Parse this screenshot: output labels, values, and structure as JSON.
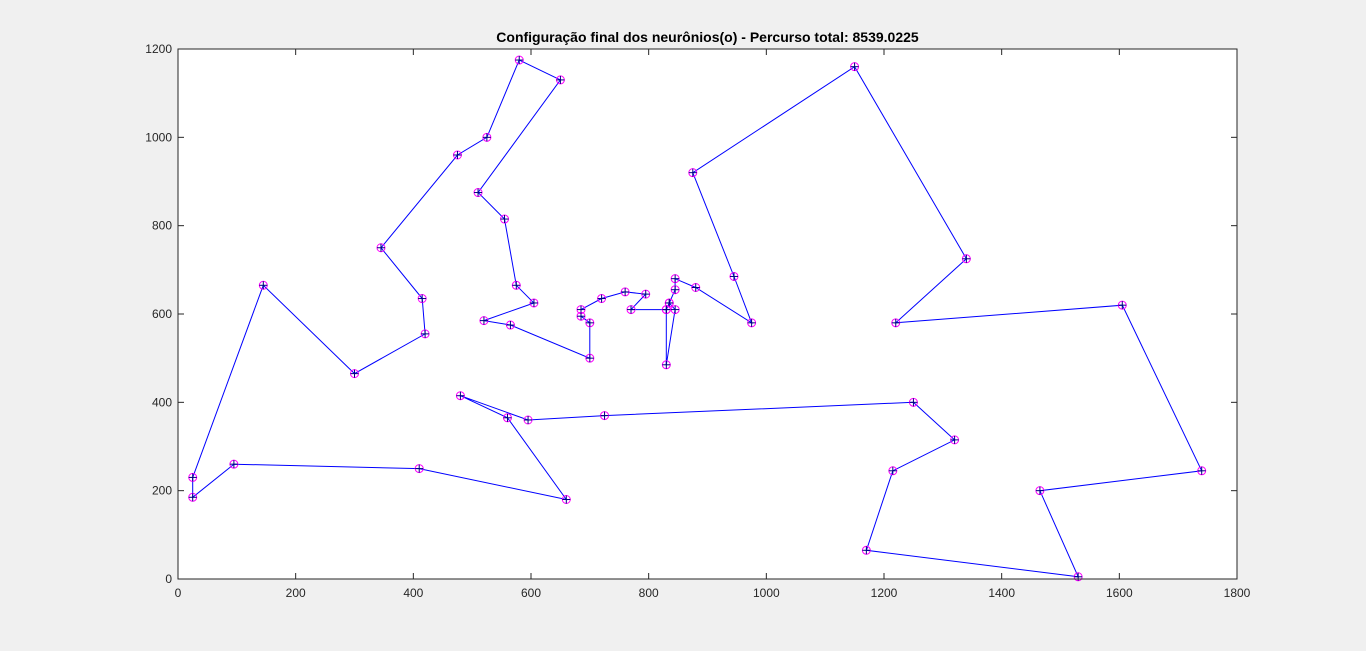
{
  "chart_data": {
    "type": "line",
    "title": "Configuração final dos neurônios(o) - Percurso total: 8539.0225",
    "xlabel": "",
    "ylabel": "",
    "xlim": [
      0,
      1800
    ],
    "ylim": [
      0,
      1200
    ],
    "xticks": [
      0,
      200,
      400,
      600,
      800,
      1000,
      1200,
      1400,
      1600,
      1800
    ],
    "yticks": [
      0,
      200,
      400,
      600,
      800,
      1000,
      1200
    ],
    "xtick_labels": [
      "0",
      "200",
      "400",
      "600",
      "800",
      "1000",
      "1200",
      "1400",
      "1600",
      "1800"
    ],
    "ytick_labels": [
      "0",
      "200",
      "400",
      "600",
      "800",
      "1000",
      "1200"
    ],
    "grid": false,
    "line_color": "#0000ff",
    "neuron_marker_color": "#ff00ff",
    "city_marker_color": "#000080",
    "series": [
      {
        "x": [
          25,
          25,
          95,
          410,
          660,
          560,
          480,
          595,
          725,
          1250,
          1320,
          1215,
          1170,
          1530,
          1465,
          1740,
          1605,
          1220,
          1340,
          1150,
          875,
          945,
          975,
          880,
          845,
          845,
          835,
          830,
          830,
          845,
          835,
          830,
          770,
          795,
          760,
          720,
          685,
          685,
          700,
          700,
          565,
          520,
          605,
          575,
          555,
          510,
          650,
          580,
          525,
          475,
          345,
          415,
          420,
          300,
          145,
          25
        ],
        "y": [
          230,
          185,
          260,
          250,
          180,
          365,
          415,
          360,
          370,
          400,
          315,
          245,
          65,
          5,
          200,
          245,
          620,
          580,
          725,
          1160,
          920,
          685,
          580,
          660,
          680,
          655,
          625,
          610,
          485,
          610,
          625,
          610,
          610,
          645,
          650,
          635,
          610,
          595,
          580,
          500,
          575,
          585,
          625,
          665,
          815,
          875,
          1130,
          1175,
          1000,
          960,
          750,
          635,
          555,
          465,
          665,
          230
        ]
      }
    ]
  }
}
